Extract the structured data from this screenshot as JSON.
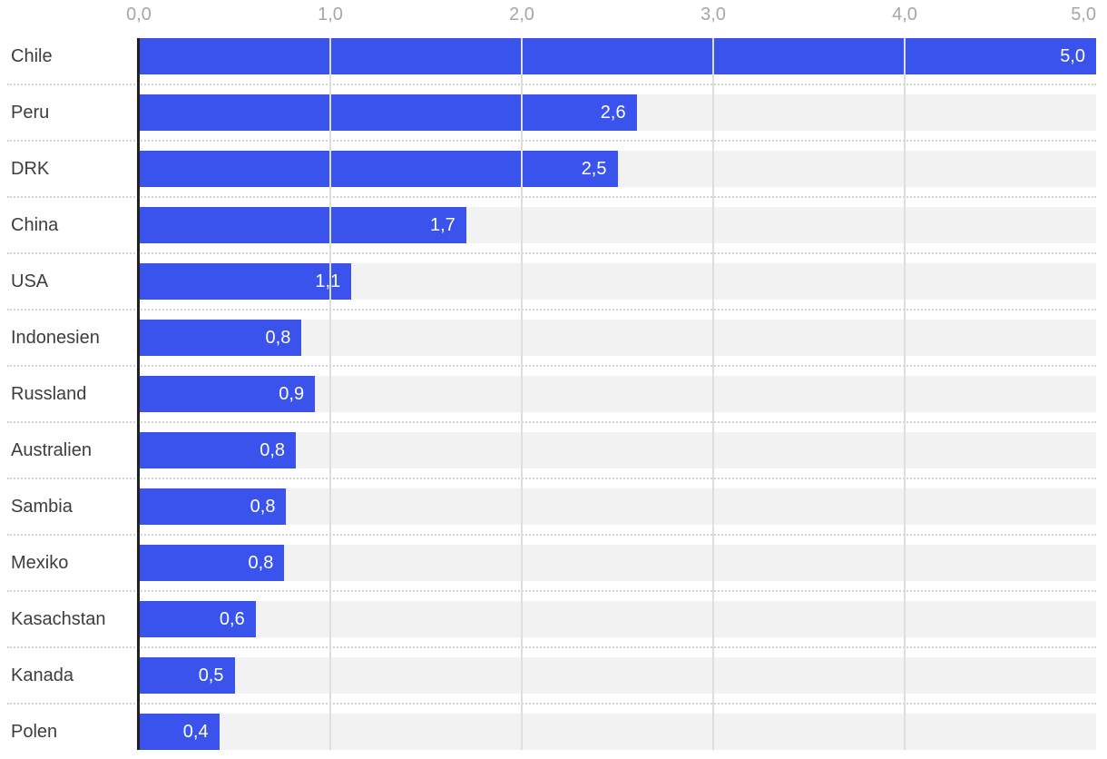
{
  "chart_data": {
    "type": "bar",
    "orientation": "horizontal",
    "title": "",
    "xlabel": "",
    "ylabel": "",
    "categories": [
      "Chile",
      "Peru",
      "DRK",
      "China",
      "USA",
      "Indonesien",
      "Russland",
      "Australien",
      "Sambia",
      "Mexiko",
      "Kasachstan",
      "Kanada",
      "Polen"
    ],
    "values": [
      5.0,
      2.6,
      2.5,
      1.71,
      1.11,
      0.85,
      0.92,
      0.82,
      0.77,
      0.76,
      0.61,
      0.5,
      0.42
    ],
    "value_labels": [
      "5,0",
      "2,6",
      "2,5",
      "1,7",
      "1,1",
      "0,8",
      "0,9",
      "0,8",
      "0,8",
      "0,8",
      "0,6",
      "0,5",
      "0,4"
    ],
    "xlim": [
      0,
      5
    ],
    "x_ticks": [
      {
        "value": 0,
        "label": "0,0"
      },
      {
        "value": 1,
        "label": "1,0"
      },
      {
        "value": 2,
        "label": "2,0"
      },
      {
        "value": 3,
        "label": "3,0"
      },
      {
        "value": 4,
        "label": "4,0"
      },
      {
        "value": 5,
        "label": "5,0"
      }
    ],
    "axis_position": "top",
    "grid": "vertical",
    "legend": "none"
  },
  "style": {
    "bar_color": "#3a53ec",
    "track_color": "#f2f2f2",
    "gridline_color": "#dedede",
    "separator_color": "#d2d2d2",
    "axis_line_color": "#202020",
    "tick_label_color": "#a6a6a6",
    "category_label_color": "#3d3d3d",
    "value_label_color": "#ffffff"
  }
}
